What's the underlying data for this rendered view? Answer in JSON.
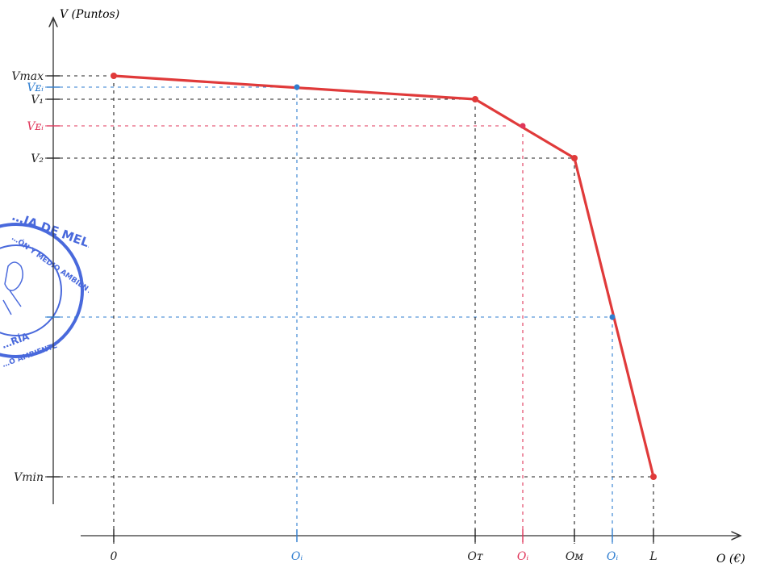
{
  "chart_data": {
    "type": "line",
    "title": "",
    "xlabel": "O (€)",
    "ylabel": "V (Puntos)",
    "colors": {
      "curve": "#e03a3a",
      "axis": "#333333",
      "guide_black": "#222222",
      "guide_blue": "#2f7ed0",
      "guide_red": "#e0365a",
      "seal": "#2a4fd6"
    },
    "x_ticks": [
      {
        "id": "zero",
        "label": "0",
        "value": 0,
        "color": "#222222"
      },
      {
        "id": "oi-blue-1",
        "label": "Oᵢ",
        "value": 2,
        "color": "#2f7ed0"
      },
      {
        "id": "ot",
        "label": "Oᴛ",
        "value": 4,
        "color": "#222222"
      },
      {
        "id": "oi-red",
        "label": "Oᵢ",
        "value": 4.55,
        "color": "#e0365a"
      },
      {
        "id": "om",
        "label": "Oᴍ",
        "value": 5.1,
        "color": "#222222"
      },
      {
        "id": "oi-blue-2",
        "label": "Oᵢ",
        "value": 5.55,
        "color": "#2f7ed0"
      },
      {
        "id": "l",
        "label": "L",
        "value": 6,
        "color": "#222222"
      }
    ],
    "y_ticks": [
      {
        "id": "vmax",
        "label": "Vmax",
        "value": 10,
        "color": "#222222"
      },
      {
        "id": "vei-blue",
        "label": "Vᴇᵢ",
        "value": 9.75,
        "color": "#2f7ed0"
      },
      {
        "id": "v1",
        "label": "V₁",
        "value": 9.5,
        "color": "#222222"
      },
      {
        "id": "vei-red",
        "label": "Vᴇᵢ",
        "value": 9.0,
        "color": "#e0365a"
      },
      {
        "id": "v2",
        "label": "V₂",
        "value": 8.0,
        "color": "#222222"
      },
      {
        "id": "vei-blue-2",
        "label": "",
        "value": 4.0,
        "color": "#2f7ed0"
      },
      {
        "id": "vmin",
        "label": "Vmin",
        "value": 0,
        "color": "#222222"
      }
    ],
    "series": [
      {
        "points": [
          {
            "x": 0,
            "y": 10
          },
          {
            "x": 4,
            "y": 9.5
          },
          {
            "x": 5.1,
            "y": 8.0
          },
          {
            "x": 6,
            "y": 0
          }
        ]
      }
    ],
    "marked_points": [
      {
        "x": 2,
        "y": 9.75,
        "color": "#2f7ed0"
      },
      {
        "x": 4.55,
        "y": 9.0,
        "color": "#e0365a"
      },
      {
        "x": 5.55,
        "y": 4.0,
        "color": "#2f7ed0"
      }
    ],
    "xlim": [
      0,
      6
    ],
    "ylim": [
      0,
      10
    ],
    "grid": false
  },
  "seal": {
    "text_top": "…IA DE MELILLA",
    "text_mid": "…ÓN Y MEDIO AMBIENTE",
    "text_bottom": "…RÍA",
    "text_bottom2": "…O AMBIENTE"
  }
}
